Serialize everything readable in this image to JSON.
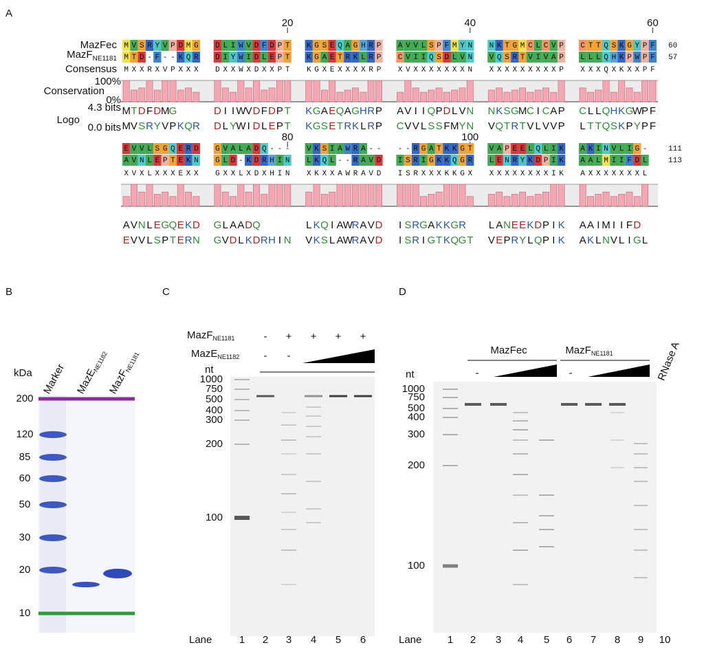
{
  "panel_a": {
    "label": "A",
    "seq1_name": "MazFec",
    "seq2_name": {
      "main": "MazF",
      "sub": "NE1181"
    },
    "consensus_name": "Consensus",
    "conservation_name": "Conservation",
    "logo_name": "Logo",
    "conservation_max": "100%",
    "conservation_min": "0%",
    "logo_max": "4.3 bits",
    "logo_min": "0.0 bits",
    "rows": [
      {
        "positions": [
          "20",
          "40",
          "60"
        ],
        "seq1": [
          "MVSRYVPDMG",
          "DLIWVDFDPT",
          "KGSEQAGHRP",
          "AVVLSPFMYN",
          "NKTGMCLCVP",
          "CTTQSKGYPF"
        ],
        "seq2": [
          "MTD-F--KQR",
          "DIYWIDLEPT",
          "KGAETRKLRP",
          "CVIIQSDLVN",
          "VQSRTVIVAP",
          "LLLQHKPWPF"
        ],
        "consensus": [
          "MXXRXVPXXX",
          "DXXWXDXXPT",
          "KGXEXXXXRP",
          "XVXXXXXXXN",
          "XXXXXXXXXP",
          "XXXQXKXXPF"
        ],
        "logo_top": [
          "MTDFDMG",
          "DIIWVDFDPT",
          "KGAEQAGHRP",
          "AVIIQPDLVN",
          "NKSGMCICAP",
          "CLLQHKGWPF"
        ],
        "logo_bottom": [
          "MVSRYVPKQR",
          "DLYWIDLEPT",
          "KGSETRKLRP",
          "CVVLSSFMYN",
          "VQTRTVLVVP",
          "LTTQSKPYPF"
        ],
        "end1": "60",
        "end2": "57"
      },
      {
        "positions": [
          "80",
          "100"
        ],
        "seq1": [
          "EVVLSGQERD",
          "GVALADQ---",
          "VKSIAWRA--",
          "--RGATKKGT",
          "VAPEELQLIK",
          "AKINVLIG-"
        ],
        "seq2": [
          "AVNLEPTEKN",
          "GLD-KDRHIN",
          "LKQL--RAVD",
          "ISRIGKKQGR",
          "LENRYKDPIK",
          "AALMIIFDL"
        ],
        "consensus": [
          "XVXLXXXEXX",
          "GXXLXDXHIN",
          "XKXXAWRAVD",
          "ISRXXXKKGX",
          "XXXXXXXXIK",
          "AXXXXXXXL"
        ],
        "logo_top": [
          "AVNLEGQEKD",
          "GLAADQ",
          "LKQIAWRAVD",
          "ISRGAKKGR",
          "LANEEKDPIK",
          "AAIMIIFD"
        ],
        "logo_bottom": [
          "EVVLSPTERN",
          "GVDLKDRHIN",
          "VKSLAWRAVD",
          "ISRIGTKQGT",
          "VEPRYLQPIK",
          "AKLNVLIGL"
        ],
        "end1": "111",
        "end2": "113"
      }
    ]
  },
  "panel_b": {
    "label": "B",
    "unit": "kDa",
    "lanes": [
      {
        "main": "Marker"
      },
      {
        "main": "MazE",
        "sub": "NE1182"
      },
      {
        "main": "MazF",
        "sub": "NE1181"
      }
    ],
    "sizes": [
      "200",
      "120",
      "85",
      "60",
      "50",
      "30",
      "20",
      "10"
    ]
  },
  "panel_c": {
    "label": "C",
    "mazf": {
      "main": "MazF",
      "sub": "NE1181"
    },
    "mazf_signs": [
      "-",
      "+",
      "+",
      "+",
      "+"
    ],
    "maze": {
      "main": "MazE",
      "sub": "NE1182"
    },
    "maze_signs": [
      "-",
      "-"
    ],
    "unit": "nt",
    "sizes": [
      "1000",
      "750",
      "500",
      "400",
      "300",
      "200",
      "100"
    ],
    "lane_title": "Lane",
    "lanes": [
      "1",
      "2",
      "3",
      "4",
      "5",
      "6"
    ]
  },
  "panel_d": {
    "label": "D",
    "groups": [
      {
        "main": "MazFec"
      },
      {
        "main": "MazF",
        "sub": "NE1181"
      }
    ],
    "signs": [
      "-",
      "-"
    ],
    "rnase": "RNase A",
    "unit": "nt",
    "sizes": [
      "1000",
      "750",
      "500",
      "400",
      "300",
      "200",
      "100"
    ],
    "lane_title": "Lane",
    "lanes": [
      "1",
      "2",
      "3",
      "4",
      "5",
      "6",
      "7",
      "8",
      "9",
      "10"
    ]
  }
}
